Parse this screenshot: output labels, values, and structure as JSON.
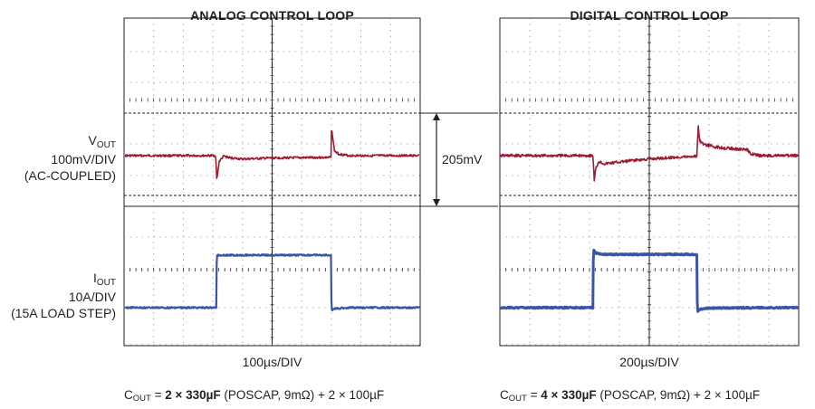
{
  "titles": {
    "left": "ANALOG CONTROL LOOP",
    "right": "DIGITAL CONTROL LOOP"
  },
  "labels": {
    "vout": {
      "main": "V",
      "sub": "OUT",
      "line2": "100mV/DIV",
      "line3": "(AC-COUPLED)"
    },
    "iout": {
      "main": "I",
      "sub": "OUT",
      "line2": "10A/DIV",
      "line3": "(15A LOAD STEP)"
    },
    "delta": "205mV"
  },
  "timebase": {
    "left": "100µs/DIV",
    "right": "200µs/DIV"
  },
  "cout": {
    "left": {
      "c": "C",
      "sub": "OUT",
      "eq": " = ",
      "bold": "2 × 330µF",
      "rest": " (POSCAP, 9mΩ) + 2 × 100µF"
    },
    "right": {
      "c": "C",
      "sub": "OUT",
      "eq": " = ",
      "bold": "4 × 330µF",
      "rest": " (POSCAP, 9mΩ) + 2 × 100µF"
    }
  },
  "colors": {
    "vout": "#9b1b30",
    "iout": "#3a55a8",
    "grid": "#999999",
    "frame": "#231f20"
  },
  "chart_data": [
    {
      "type": "line",
      "title": "ANALOG CONTROL LOOP",
      "xlabel": "100µs/DIV",
      "grid": true,
      "x_divisions": 10,
      "y_divisions": 8,
      "series": [
        {
          "name": "VOUT",
          "x": [
            0,
            3.08,
            3.12,
            3.2,
            3.35,
            3.6,
            4.0,
            5.0,
            7.0,
            7.02,
            7.06,
            7.12,
            7.25,
            7.6,
            10
          ],
          "y": [
            0,
            0,
            -0.42,
            -0.1,
            -0.01,
            -0.04,
            -0.06,
            -0.04,
            -0.03,
            0.5,
            0.3,
            0.08,
            0.03,
            0.0,
            0
          ]
        },
        {
          "name": "IOUT",
          "x": [
            0,
            3.1,
            3.12,
            7.0,
            7.02,
            7.1,
            7.6,
            10
          ],
          "y": [
            0,
            0,
            1.5,
            1.5,
            -0.08,
            -0.03,
            0.0,
            0
          ]
        }
      ]
    },
    {
      "type": "line",
      "title": "DIGITAL CONTROL LOOP",
      "xlabel": "200µs/DIV",
      "grid": true,
      "x_divisions": 10,
      "y_divisions": 8,
      "series": [
        {
          "name": "VOUT",
          "x": [
            0,
            3.1,
            3.15,
            3.2,
            3.3,
            3.5,
            4.5,
            5.5,
            6.6,
            6.65,
            6.7,
            6.8,
            7.2,
            7.8,
            8.3,
            8.4,
            8.7,
            10
          ],
          "y": [
            0,
            0,
            -0.42,
            -0.22,
            -0.1,
            -0.14,
            -0.08,
            -0.04,
            -0.01,
            0.5,
            0.26,
            0.2,
            0.15,
            0.12,
            0.1,
            0.04,
            0.0,
            0
          ]
        },
        {
          "name": "IOUT",
          "x": [
            0,
            3.1,
            3.12,
            3.2,
            3.5,
            6.6,
            6.62,
            6.7,
            7.0,
            10
          ],
          "y": [
            0,
            0,
            1.65,
            1.56,
            1.52,
            1.52,
            -0.1,
            -0.04,
            -0.01,
            0
          ]
        }
      ]
    }
  ]
}
